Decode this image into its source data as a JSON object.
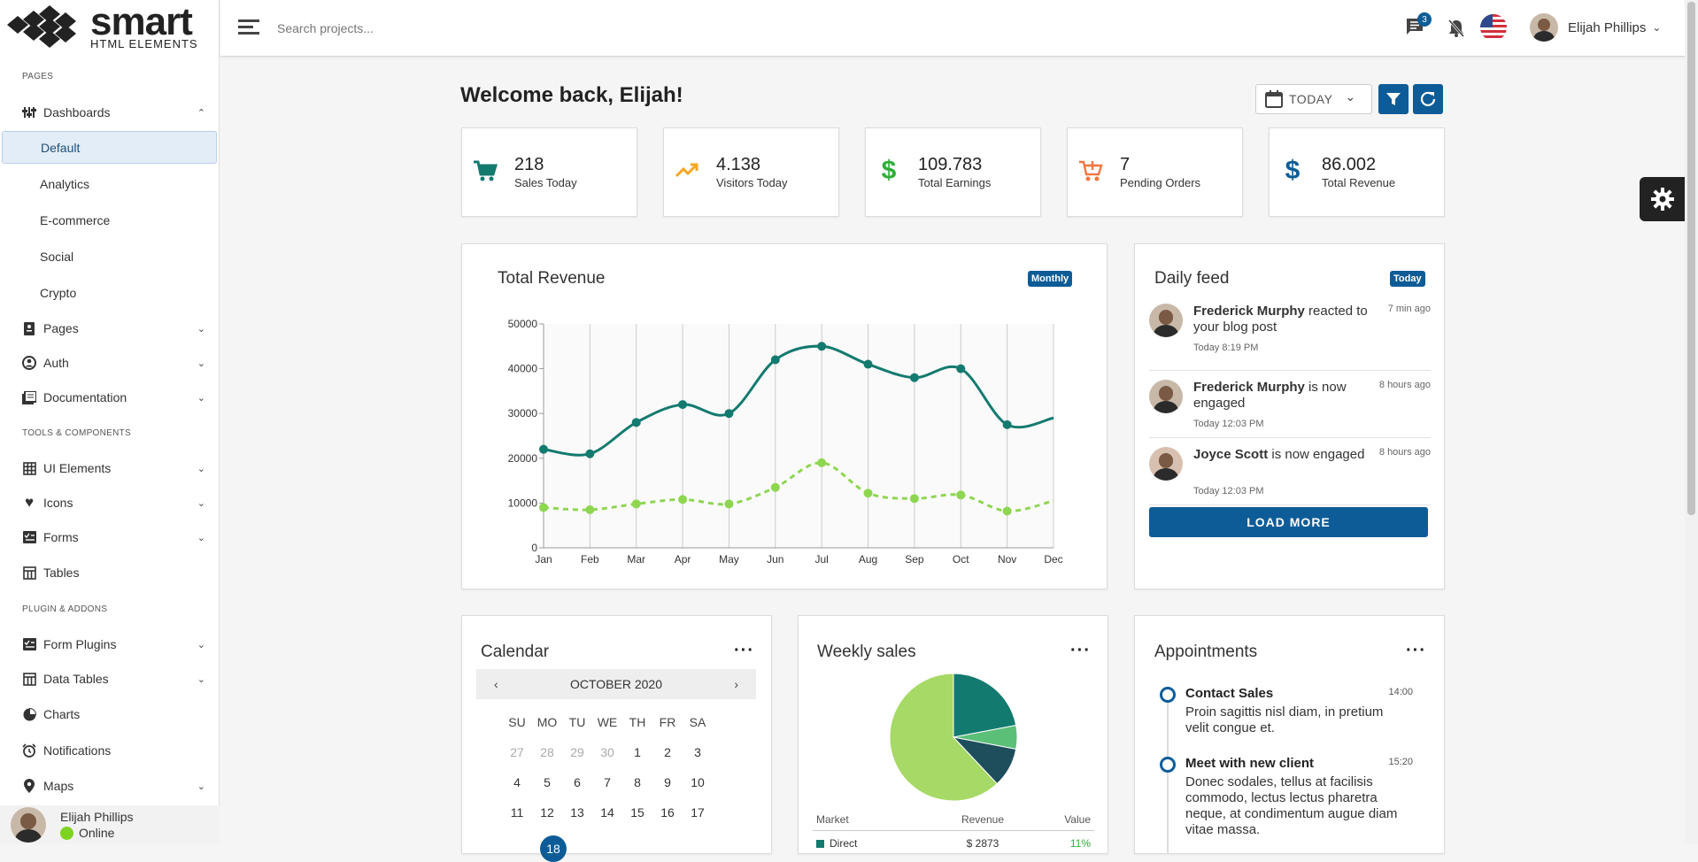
{
  "brand": {
    "name": "smart",
    "sub": "HTML ELEMENTS"
  },
  "header": {
    "search_placeholder": "Search projects...",
    "messages_count": "3",
    "user_name": "Elijah Phillips"
  },
  "sidebar": {
    "section_pages": "PAGES",
    "dashboards": "Dashboards",
    "sub": [
      "Default",
      "Analytics",
      "E-commerce",
      "Social",
      "Crypto"
    ],
    "pages": "Pages",
    "auth": "Auth",
    "documentation": "Documentation",
    "section_tools": "TOOLS & COMPONENTS",
    "ui_elements": "UI Elements",
    "icons": "Icons",
    "forms": "Forms",
    "tables": "Tables",
    "section_plugins": "PLUGIN & ADDONS",
    "form_plugins": "Form Plugins",
    "data_tables": "Data Tables",
    "charts": "Charts",
    "notifications": "Notifications",
    "maps": "Maps",
    "user": {
      "name": "Elijah Phillips",
      "status": "Online"
    }
  },
  "main": {
    "welcome": "Welcome back, Elijah!",
    "date_select": "TODAY",
    "stats": [
      {
        "value": "218",
        "label": "Sales Today",
        "icon": "cart-icon",
        "color": "#137a6f"
      },
      {
        "value": "4.138",
        "label": "Visitors Today",
        "icon": "trending-up-icon",
        "color": "#f5a623"
      },
      {
        "value": "109.783",
        "label": "Total Earnings",
        "icon": "dollar-icon",
        "color": "#2fae3a"
      },
      {
        "value": "7",
        "label": "Pending Orders",
        "icon": "cart-plus-icon",
        "color": "#f07742"
      },
      {
        "value": "86.002",
        "label": "Total Revenue",
        "icon": "dollar-icon",
        "color": "#0d5c97"
      }
    ],
    "revenue": {
      "title": "Total Revenue",
      "badge": "Monthly"
    },
    "feed": {
      "title": "Daily feed",
      "badge": "Today",
      "load_more": "LOAD MORE",
      "items": [
        {
          "name": "Frederick Murphy",
          "text": "reacted to your blog post",
          "time_ago": "7 min ago",
          "date": "Today 8:19 PM"
        },
        {
          "name": "Frederick Murphy",
          "text": "is now engaged",
          "time_ago": "8 hours ago",
          "date": "Today 12:03 PM"
        },
        {
          "name": "Joyce Scott",
          "text": "is now engaged",
          "time_ago": "8 hours ago",
          "date": "Today 12:03 PM"
        }
      ]
    },
    "calendar": {
      "title": "Calendar",
      "month": "OCTOBER 2020",
      "weekdays": [
        "SU",
        "MO",
        "TU",
        "WE",
        "TH",
        "FR",
        "SA"
      ],
      "rows": [
        [
          "27",
          "28",
          "29",
          "30",
          "1",
          "2",
          "3"
        ],
        [
          "4",
          "5",
          "6",
          "7",
          "8",
          "9",
          "10"
        ],
        [
          "11",
          "12",
          "13",
          "14",
          "15",
          "16",
          "17"
        ]
      ],
      "selected_day": "18"
    },
    "weekly": {
      "title": "Weekly sales",
      "columns": [
        "Market",
        "Revenue",
        "Value"
      ],
      "row": {
        "market": "Direct",
        "revenue": "$ 2873",
        "value": "11%"
      }
    },
    "appointments": {
      "title": "Appointments",
      "items": [
        {
          "title": "Contact Sales",
          "time": "14:00",
          "text": "Proin sagittis nisl diam, in pretium velit congue et."
        },
        {
          "title": "Meet with new client",
          "time": "15:20",
          "text": "Donec sodales, tellus at facilisis commodo, lectus lectus pharetra neque, at condimentum augue diam vitae massa."
        }
      ]
    }
  },
  "chart_data": [
    {
      "type": "line",
      "categories": [
        "Jan",
        "Feb",
        "Mar",
        "Apr",
        "May",
        "Jun",
        "Jul",
        "Aug",
        "Sep",
        "Oct",
        "Nov",
        "Dec"
      ],
      "series": [
        {
          "values": [
            22000,
            21000,
            28000,
            32000,
            30000,
            42000,
            45000,
            41000,
            38000,
            40000,
            27500,
            29000
          ],
          "color": "#137a6f",
          "style": "solid"
        },
        {
          "values": [
            9000,
            8500,
            9800,
            10800,
            9800,
            13500,
            19000,
            12200,
            11000,
            11800,
            8200,
            10500
          ],
          "color": "#8ed650",
          "style": "dashed"
        }
      ],
      "yticks": [
        0,
        10000,
        20000,
        30000,
        40000,
        50000
      ],
      "ylim": [
        0,
        50000
      ],
      "grid": "vertical"
    },
    {
      "type": "pie",
      "values": [
        62,
        22,
        6,
        10
      ],
      "colors": [
        "#a6d965",
        "#137a6f",
        "#5cbf78",
        "#1e4d5c"
      ]
    }
  ]
}
